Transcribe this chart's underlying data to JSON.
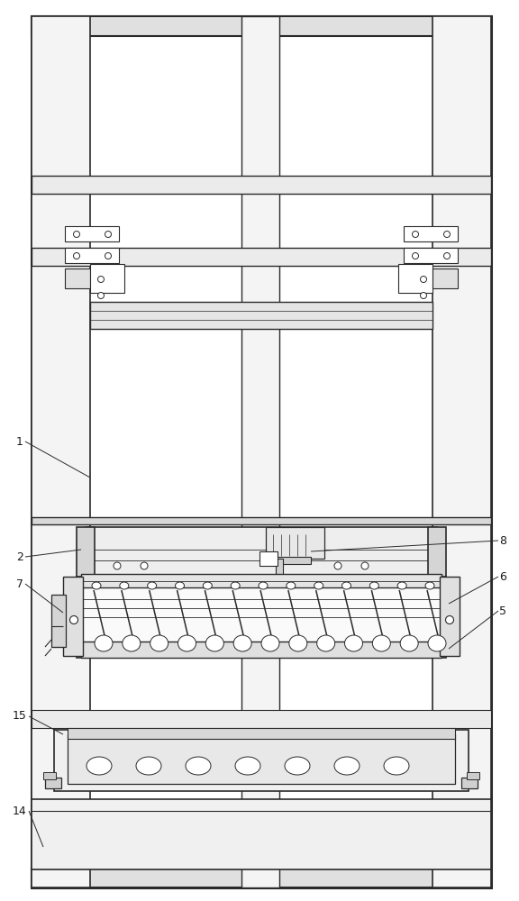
{
  "bg_color": "#ffffff",
  "lc": "#2a2a2a",
  "gray1": "#e8e8e8",
  "gray2": "#d8d8d8",
  "gray3": "#c8c8c8",
  "figsize": [
    5.76,
    10.0
  ],
  "dpi": 100
}
